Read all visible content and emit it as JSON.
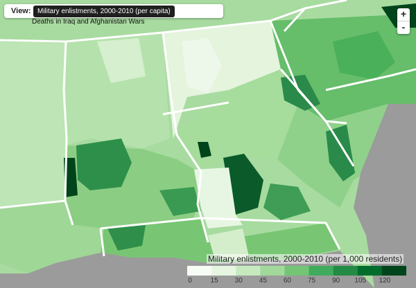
{
  "view": {
    "label": "View:",
    "active_option": "Military enlistments, 2000-2010 (per capita)",
    "other_option": "Deaths in Iraq and Afghanistan Wars"
  },
  "zoom": {
    "in_label": "+",
    "out_label": "-"
  },
  "legend": {
    "title": "Military enlistments, 2000-2010 (per 1,000 residents)",
    "ticks": [
      "0",
      "15",
      "30",
      "45",
      "60",
      "75",
      "90",
      "105",
      "120"
    ],
    "colors": [
      "#f7fcf5",
      "#e5f5e0",
      "#c7e9c0",
      "#a1d99b",
      "#74c476",
      "#41ab5d",
      "#238b45",
      "#006d2c",
      "#00441b"
    ]
  },
  "colors": {
    "ocean": "#9b9b9b",
    "border": "#ffffff"
  }
}
